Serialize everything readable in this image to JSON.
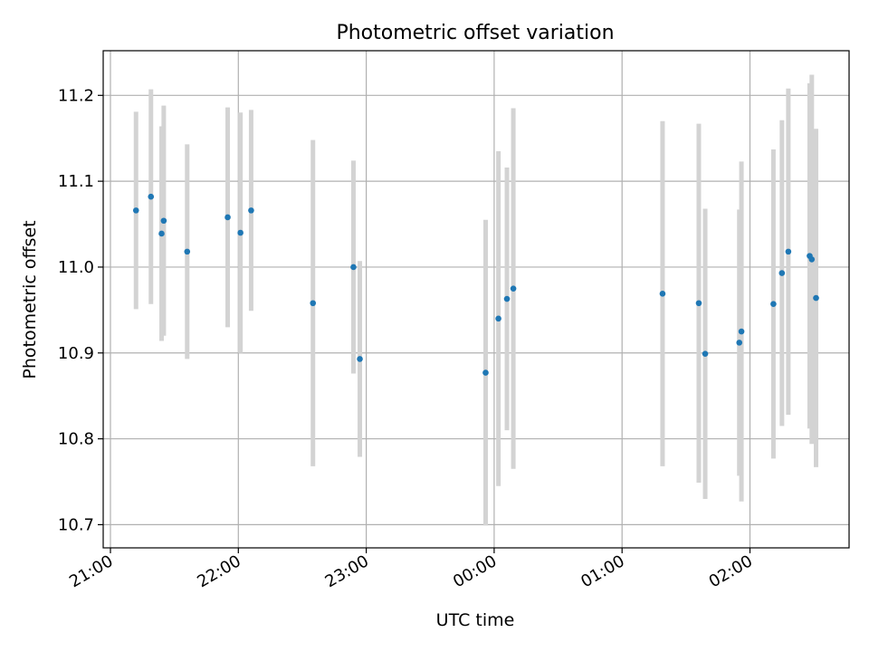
{
  "chart_data": {
    "type": "scatter",
    "title": "Photometric offset variation",
    "xlabel": "UTC time",
    "ylabel": "Photometric offset",
    "x_axis": "time",
    "x_ticks": [
      "21:00",
      "22:00",
      "23:00",
      "00:00",
      "01:00",
      "02:00"
    ],
    "y_ticks": [
      "10.7",
      "10.8",
      "10.9",
      "11.0",
      "11.1",
      "11.2"
    ],
    "ylim": [
      10.673,
      11.252
    ],
    "grid": true,
    "legend": "none",
    "marker_color": "#1f77b4",
    "errorbar_color": "#d3d3d3",
    "points": [
      {
        "time": "21:12",
        "y": 11.066,
        "yerr": 0.115
      },
      {
        "time": "21:19",
        "y": 11.082,
        "yerr": 0.125
      },
      {
        "time": "21:24",
        "y": 11.039,
        "yerr": 0.125
      },
      {
        "time": "21:25",
        "y": 11.054,
        "yerr": 0.134
      },
      {
        "time": "21:36",
        "y": 11.018,
        "yerr": 0.125
      },
      {
        "time": "21:55",
        "y": 11.058,
        "yerr": 0.128
      },
      {
        "time": "22:01",
        "y": 11.04,
        "yerr": 0.14
      },
      {
        "time": "22:06",
        "y": 11.066,
        "yerr": 0.117
      },
      {
        "time": "22:35",
        "y": 10.958,
        "yerr": 0.19
      },
      {
        "time": "22:54",
        "y": 11.0,
        "yerr": 0.124
      },
      {
        "time": "22:57",
        "y": 10.893,
        "yerr": 0.114
      },
      {
        "time": "23:56",
        "y": 10.877,
        "yerr": 0.178
      },
      {
        "time": "00:02",
        "y": 10.94,
        "yerr": 0.195
      },
      {
        "time": "00:06",
        "y": 10.963,
        "yerr": 0.153
      },
      {
        "time": "00:09",
        "y": 10.975,
        "yerr": 0.21
      },
      {
        "time": "01:19",
        "y": 10.969,
        "yerr": 0.201
      },
      {
        "time": "01:36",
        "y": 10.958,
        "yerr": 0.209
      },
      {
        "time": "01:39",
        "y": 10.899,
        "yerr": 0.169
      },
      {
        "time": "01:55",
        "y": 10.912,
        "yerr": 0.155
      },
      {
        "time": "01:56",
        "y": 10.925,
        "yerr": 0.198
      },
      {
        "time": "02:11",
        "y": 10.957,
        "yerr": 0.18
      },
      {
        "time": "02:15",
        "y": 10.993,
        "yerr": 0.178
      },
      {
        "time": "02:18",
        "y": 11.018,
        "yerr": 0.19
      },
      {
        "time": "02:28",
        "y": 11.013,
        "yerr": 0.201
      },
      {
        "time": "02:29",
        "y": 11.009,
        "yerr": 0.215
      },
      {
        "time": "02:31",
        "y": 10.964,
        "yerr": 0.197
      }
    ]
  }
}
